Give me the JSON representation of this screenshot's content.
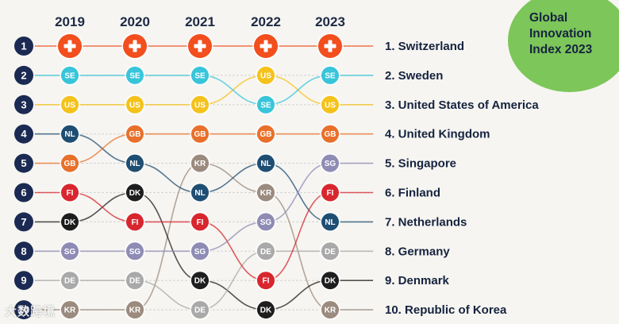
{
  "chart_data": {
    "type": "bump",
    "title": "Global Innovation Index 2023",
    "years": [
      "2019",
      "2020",
      "2021",
      "2022",
      "2023"
    ],
    "ranks": [
      1,
      2,
      3,
      4,
      5,
      6,
      7,
      8,
      9,
      10
    ],
    "series": [
      {
        "name": "Switzerland",
        "code": "CH",
        "color": "#f24e1e",
        "ranks": [
          1,
          1,
          1,
          1,
          1
        ]
      },
      {
        "name": "Sweden",
        "code": "SE",
        "color": "#38c5da",
        "ranks": [
          2,
          2,
          2,
          3,
          2
        ]
      },
      {
        "name": "United States of America",
        "code": "US",
        "color": "#f4c21a",
        "ranks": [
          3,
          3,
          3,
          2,
          3
        ]
      },
      {
        "name": "United Kingdom",
        "code": "GB",
        "color": "#e8702a",
        "ranks": [
          5,
          4,
          4,
          4,
          4
        ]
      },
      {
        "name": "Singapore",
        "code": "SG",
        "color": "#8e8bb5",
        "ranks": [
          8,
          8,
          8,
          7,
          5
        ]
      },
      {
        "name": "Finland",
        "code": "FI",
        "color": "#d8262e",
        "ranks": [
          6,
          7,
          7,
          9,
          6
        ]
      },
      {
        "name": "Netherlands",
        "code": "NL",
        "color": "#1f4e73",
        "ranks": [
          4,
          5,
          6,
          5,
          7
        ]
      },
      {
        "name": "Germany",
        "code": "DE",
        "color": "#a9a9a9",
        "ranks": [
          9,
          9,
          10,
          8,
          8
        ]
      },
      {
        "name": "Denmark",
        "code": "DK",
        "color": "#1e1e1e",
        "ranks": [
          7,
          6,
          9,
          10,
          9
        ]
      },
      {
        "name": "Republic of Korea",
        "code": "KR",
        "color": "#9b8a7e",
        "ranks": [
          10,
          10,
          5,
          6,
          10
        ]
      }
    ],
    "final_labels": [
      "1. Switzerland",
      "2. Sweden",
      "3. United States of America",
      "4. United Kingdom",
      "5. Singapore",
      "6. Finland",
      "7. Netherlands",
      "8. Germany",
      "9. Denmark",
      "10. Republic of Korea"
    ]
  },
  "badge": {
    "title": "Global Innovation Index 2023"
  },
  "watermark": "大数跨境",
  "colors": {
    "rank_circle": "#1b2a52",
    "grid_dot": "#c9c9c9",
    "background": "#f6f5f1"
  }
}
